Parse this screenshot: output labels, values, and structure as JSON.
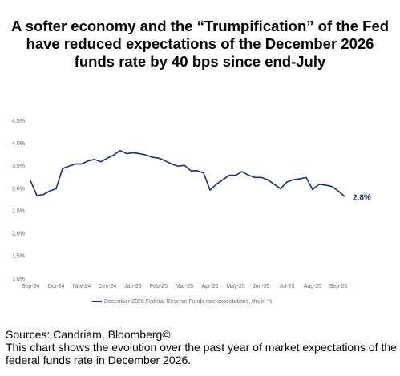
{
  "chart_data": {
    "type": "line",
    "title": "A softer economy and the “Trumpification” of the Fed have reduced expectations of the December 2026 funds rate by 40 bps since end-July",
    "x": [
      0,
      0.25,
      0.5,
      0.75,
      1,
      1.25,
      1.5,
      1.75,
      2,
      2.25,
      2.5,
      2.75,
      3,
      3.25,
      3.5,
      3.75,
      4,
      4.25,
      4.5,
      4.75,
      5,
      5.25,
      5.5,
      5.75,
      6,
      6.25,
      6.5,
      6.75,
      7,
      7.25,
      7.5,
      7.75,
      8,
      8.25,
      8.5,
      8.75,
      9,
      9.25,
      9.5,
      9.75,
      10,
      10.25,
      10.5,
      10.75,
      11,
      11.25,
      11.5,
      11.75,
      12,
      12.25
    ],
    "series": [
      {
        "name": "December 2026 Federal Reserve Funds rate expectations, rhs in %",
        "color": "#1f2d6b",
        "values": [
          3.18,
          2.85,
          2.87,
          2.95,
          3.0,
          3.45,
          3.5,
          3.55,
          3.55,
          3.62,
          3.65,
          3.6,
          3.68,
          3.75,
          3.85,
          3.78,
          3.8,
          3.78,
          3.75,
          3.7,
          3.68,
          3.62,
          3.55,
          3.5,
          3.52,
          3.4,
          3.4,
          3.35,
          2.97,
          3.1,
          3.2,
          3.3,
          3.3,
          3.38,
          3.3,
          3.25,
          3.25,
          3.2,
          3.1,
          3.0,
          3.15,
          3.2,
          3.22,
          3.25,
          2.98,
          3.1,
          3.08,
          3.05,
          2.95,
          2.83
        ]
      }
    ],
    "end_label": "2.8%",
    "xlim": [
      0,
      12.25
    ],
    "xticks": [
      {
        "value": 0,
        "label": "Sep-24"
      },
      {
        "value": 1,
        "label": "Oct-24"
      },
      {
        "value": 2,
        "label": "Nov-24"
      },
      {
        "value": 3,
        "label": "Dec-24"
      },
      {
        "value": 4,
        "label": "Jan-25"
      },
      {
        "value": 5,
        "label": "Feb-25"
      },
      {
        "value": 6,
        "label": "Mar-25"
      },
      {
        "value": 7,
        "label": "Apr-25"
      },
      {
        "value": 8,
        "label": "May-25"
      },
      {
        "value": 9,
        "label": "Jun-25"
      },
      {
        "value": 10,
        "label": "Jul-25"
      },
      {
        "value": 11,
        "label": "Aug-25"
      },
      {
        "value": 12,
        "label": "Sep-25"
      }
    ],
    "ylim": [
      1.0,
      4.5
    ],
    "yticks": [
      {
        "value": 1.0,
        "label": "1.0%"
      },
      {
        "value": 1.5,
        "label": "1.5%"
      },
      {
        "value": 2.0,
        "label": "2.0%"
      },
      {
        "value": 2.5,
        "label": "2.5%"
      },
      {
        "value": 3.0,
        "label": "3.0%"
      },
      {
        "value": 3.5,
        "label": "3.5%"
      },
      {
        "value": 4.0,
        "label": "4.0%"
      },
      {
        "value": 4.5,
        "label": "4.5%"
      }
    ],
    "sources": "Sources: Candriam, Bloomberg©",
    "note": "This chart shows the evolution over the past year of market expectations of the federal funds rate in December 2026."
  }
}
